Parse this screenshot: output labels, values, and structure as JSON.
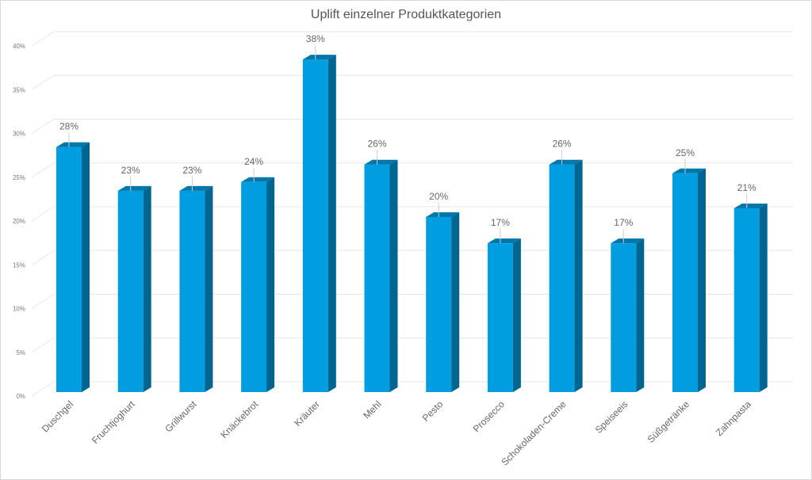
{
  "chart_data": {
    "type": "bar",
    "title": "Uplift einzelner Produktkategorien",
    "categories": [
      "Duschgel",
      "Fruchtjoghurt",
      "Grillwurst",
      "Knäckebrot",
      "Kräuter",
      "Mehl",
      "Pesto",
      "Prosecco",
      "Schokoladen-Creme",
      "Speiseeis",
      "Süßgetränke",
      "Zahnpasta"
    ],
    "values": [
      28,
      23,
      23,
      24,
      38,
      26,
      20,
      17,
      26,
      17,
      25,
      21
    ],
    "data_labels": [
      "28%",
      "23%",
      "23%",
      "24%",
      "38%",
      "26%",
      "20%",
      "17%",
      "26%",
      "17%",
      "25%",
      "21%"
    ],
    "yticks": [
      "0%",
      "5%",
      "10%",
      "15%",
      "20%",
      "25%",
      "30%",
      "35%",
      "40%"
    ],
    "ylim": [
      0,
      40
    ],
    "xlabel": "",
    "ylabel": "",
    "grid": true,
    "legend": "none",
    "style": "3d-column",
    "colors": {
      "front": "#009ee0",
      "side": "#006590",
      "top": "#0077aa",
      "grid": "#e6e6e6",
      "text": "#666666",
      "title": "#555555"
    }
  }
}
